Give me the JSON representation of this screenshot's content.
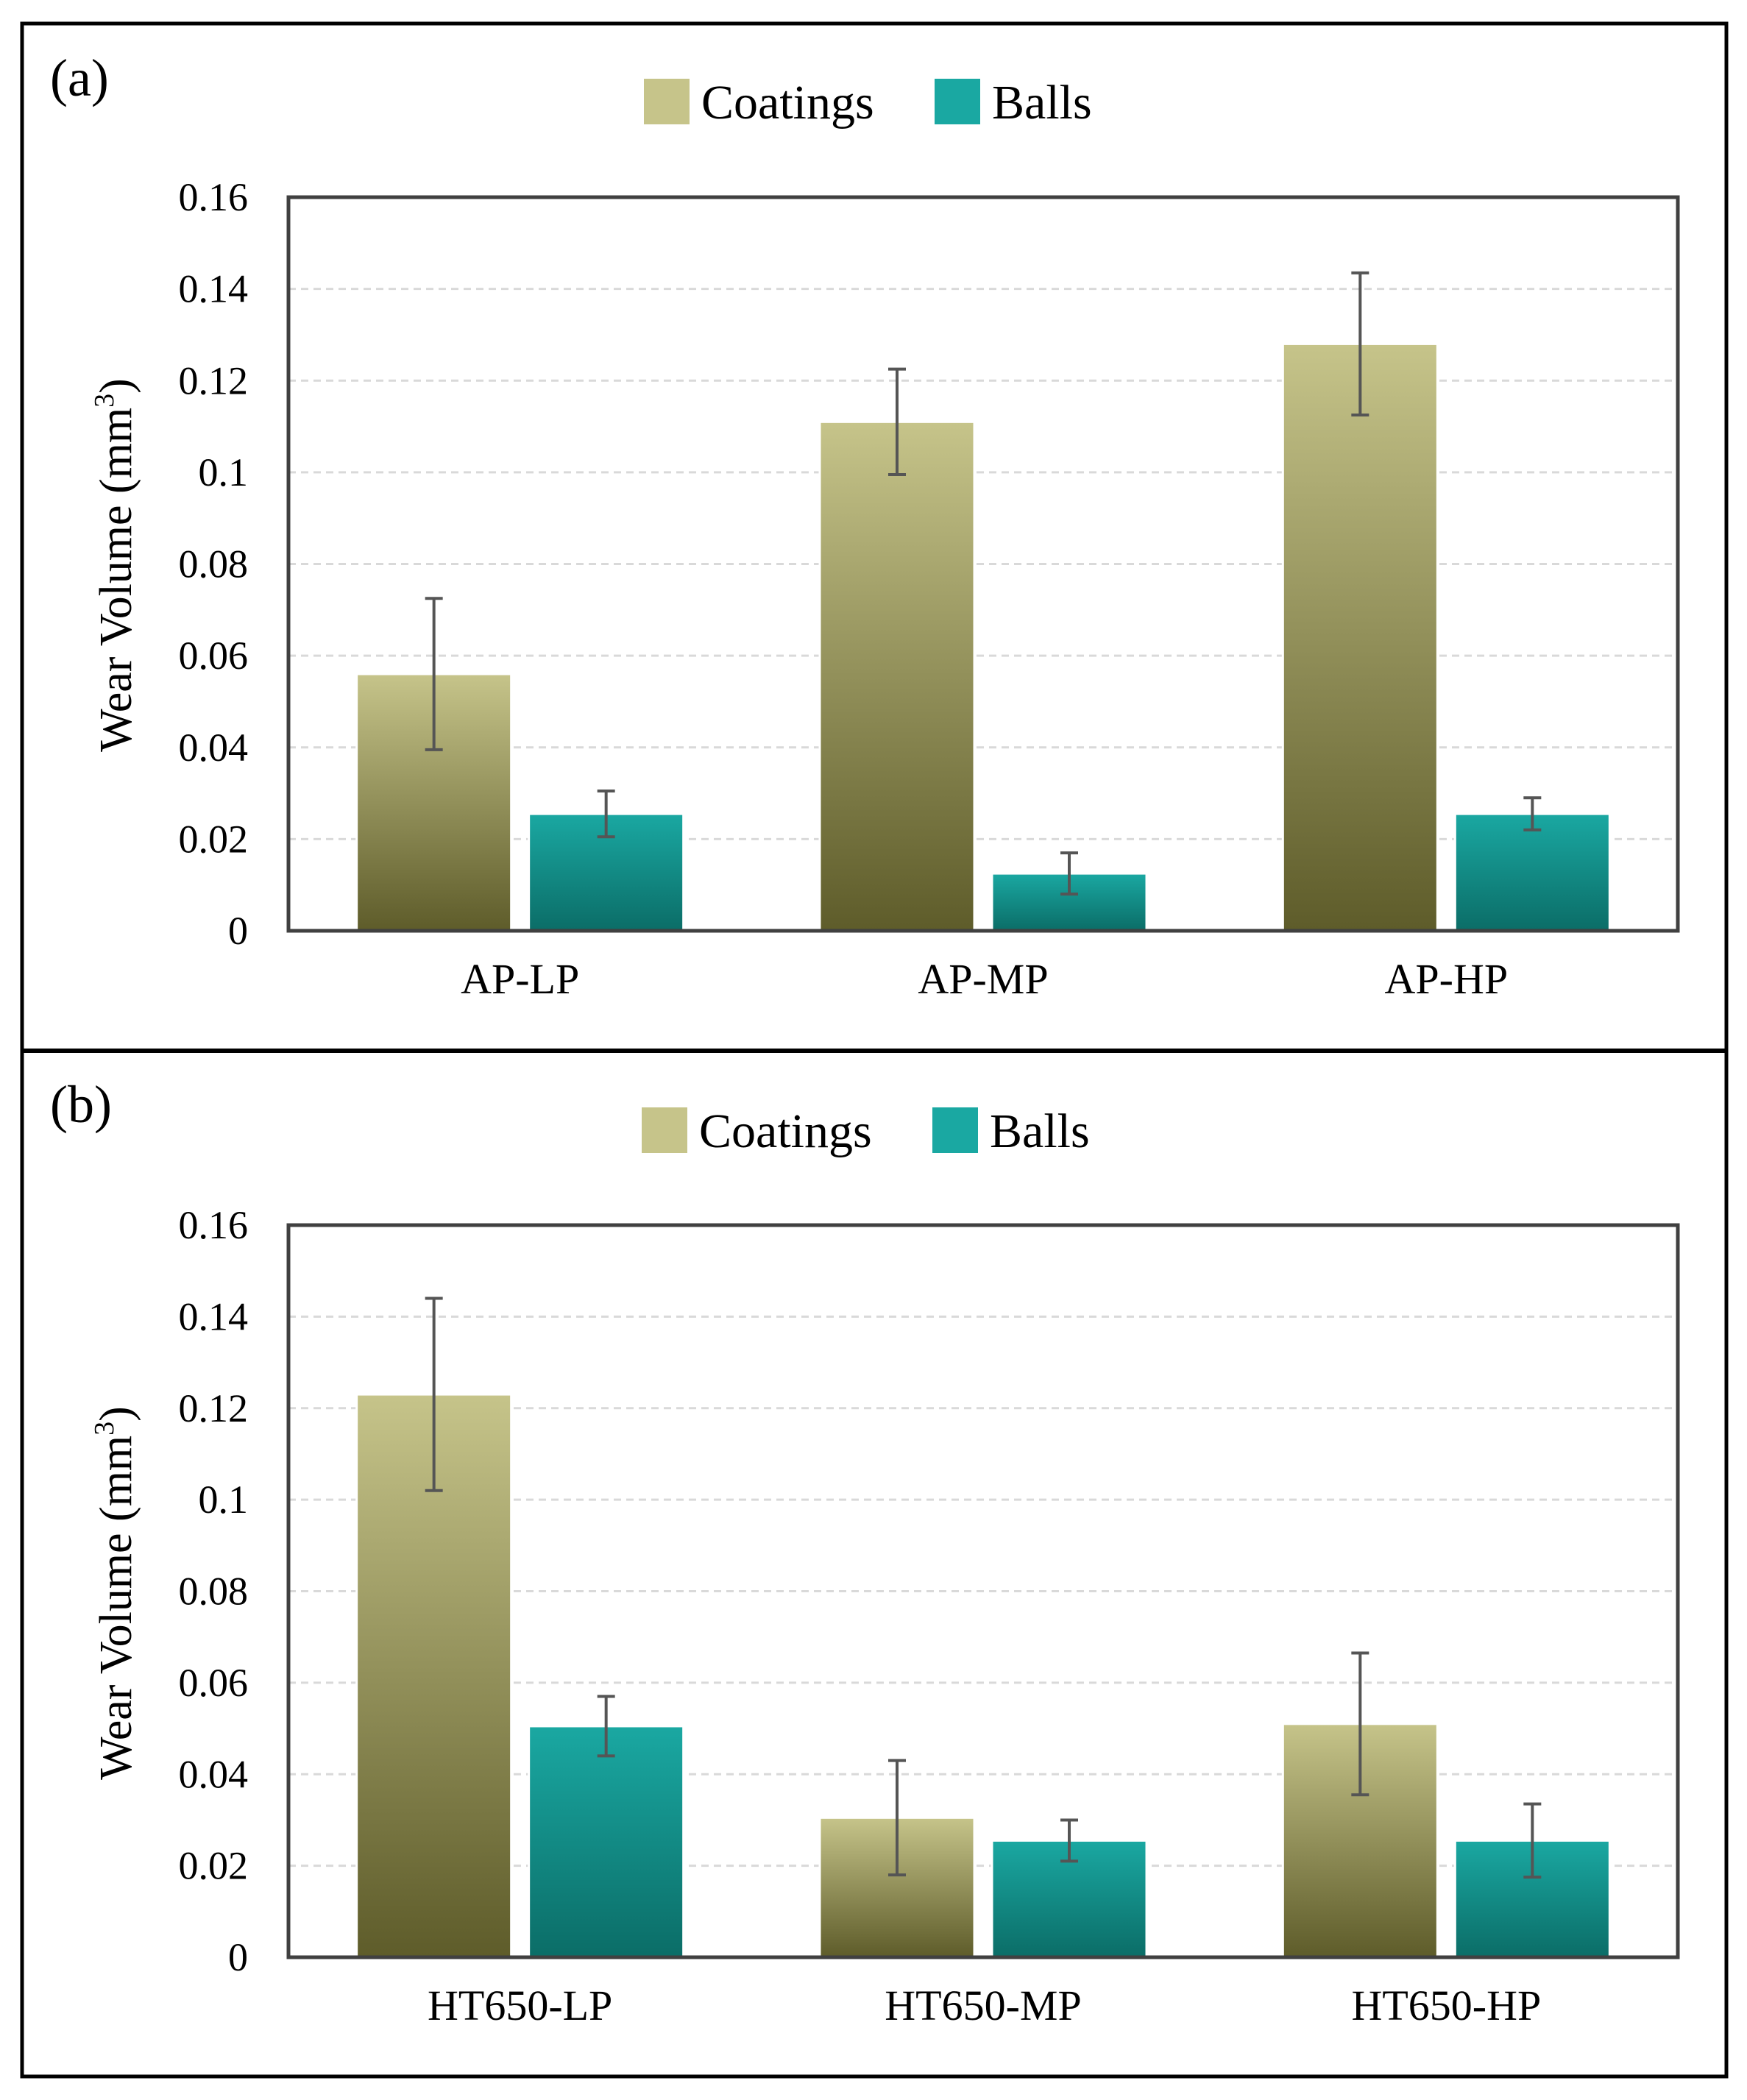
{
  "chart_data": [
    {
      "type": "bar",
      "panel_label": "(a)",
      "categories": [
        "AP-LP",
        "AP-MP",
        "AP-HP"
      ],
      "series": [
        {
          "name": "Coatings",
          "values": [
            0.056,
            0.111,
            0.128
          ],
          "errors": [
            0.0165,
            0.0115,
            0.0155
          ]
        },
        {
          "name": "Balls",
          "values": [
            0.0255,
            0.0125,
            0.0255
          ],
          "errors": [
            0.005,
            0.0045,
            0.0035
          ]
        }
      ],
      "ylabel": "Wear Volume (mm",
      "ylabel_sup": "3",
      "ylabel_end": ")",
      "ylim": [
        0,
        0.16
      ],
      "yticks": [
        "0",
        "0.02",
        "0.04",
        "0.06",
        "0.08",
        "0.1",
        "0.12",
        "0.14",
        "0.16"
      ],
      "grid": true,
      "grid_style": "dashed",
      "legend_position": "top-center"
    },
    {
      "type": "bar",
      "panel_label": "(b)",
      "categories": [
        "HT650-LP",
        "HT650-MP",
        "HT650-HP"
      ],
      "series": [
        {
          "name": "Coatings",
          "values": [
            0.123,
            0.0305,
            0.051
          ],
          "errors": [
            0.021,
            0.0125,
            0.0155
          ]
        },
        {
          "name": "Balls",
          "values": [
            0.0505,
            0.0255,
            0.0255
          ],
          "errors": [
            0.0065,
            0.0045,
            0.008
          ]
        }
      ],
      "ylabel": "Wear Volume (mm",
      "ylabel_sup": "3",
      "ylabel_end": ")",
      "ylim": [
        0,
        0.16
      ],
      "yticks": [
        "0",
        "0.02",
        "0.04",
        "0.06",
        "0.08",
        "0.1",
        "0.12",
        "0.14",
        "0.16"
      ],
      "grid": true,
      "grid_style": "solid",
      "legend_position": "top-center"
    }
  ],
  "colors": {
    "coatings_top": "#c6c48a",
    "coatings_bottom": "#5e5c2a",
    "balls_top": "#1aa8a2",
    "balls_bottom": "#0b6d67",
    "frame": "#000000"
  }
}
